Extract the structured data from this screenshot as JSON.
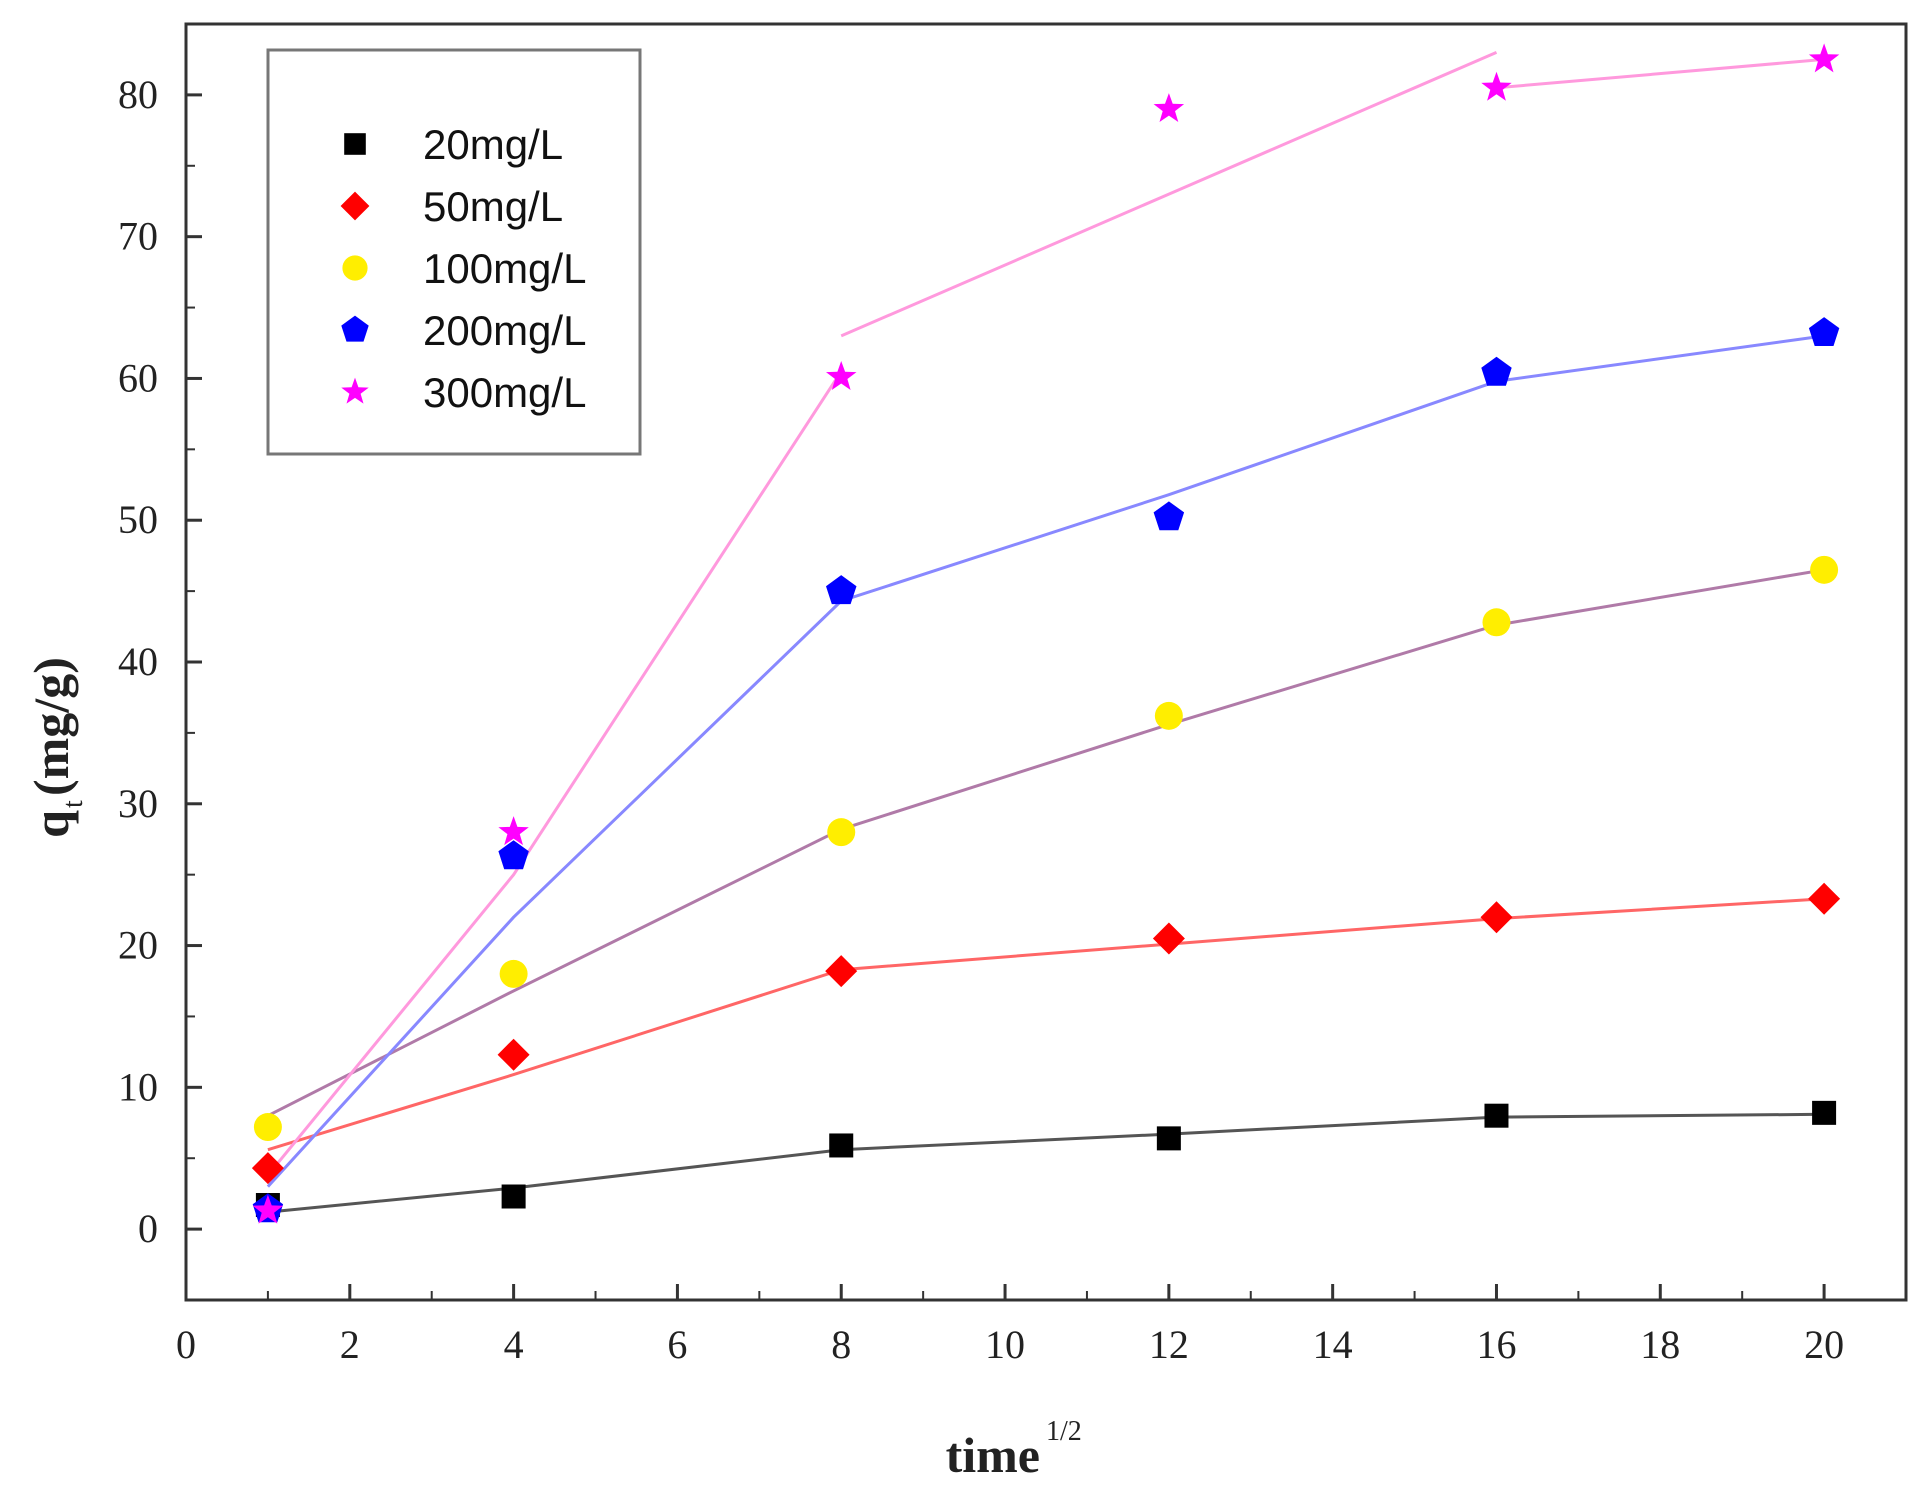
{
  "chart_data": {
    "type": "scatter",
    "title": "",
    "xlabel": "time",
    "xlabel_superscript": "1/2",
    "ylabel": "q",
    "ylabel_subscript": "t",
    "ylabel_unit": "(mg/g)",
    "xlim": [
      0,
      21
    ],
    "ylim": [
      -5,
      85
    ],
    "xticks": [
      0,
      2,
      4,
      6,
      8,
      10,
      12,
      14,
      16,
      18,
      20
    ],
    "yticks": [
      0,
      10,
      20,
      30,
      40,
      50,
      60,
      70,
      80
    ],
    "grid": false,
    "legend_position": "top-left",
    "x": [
      1,
      4,
      8,
      12,
      16,
      20
    ],
    "series": [
      {
        "name": "20mg/L",
        "color": "#000000",
        "marker": "square",
        "points": [
          [
            1,
            1.7
          ],
          [
            4,
            2.3
          ],
          [
            8,
            5.9
          ],
          [
            12,
            6.4
          ],
          [
            16,
            8.0
          ],
          [
            20,
            8.2
          ]
        ],
        "fit_line_color": "#555555",
        "fit_line": [
          [
            [
              1,
              1.2
            ],
            [
              4,
              2.9
            ],
            [
              8,
              5.6
            ],
            [
              12,
              6.7
            ],
            [
              16,
              7.9
            ],
            [
              20,
              8.1
            ]
          ]
        ]
      },
      {
        "name": "50mg/L",
        "color": "#ff0000",
        "marker": "diamond",
        "points": [
          [
            1,
            4.3
          ],
          [
            4,
            12.3
          ],
          [
            8,
            18.2
          ],
          [
            12,
            20.5
          ],
          [
            16,
            22.0
          ],
          [
            20,
            23.3
          ]
        ],
        "fit_line_color": "#ff6666",
        "fit_line": [
          [
            [
              1,
              5.6
            ],
            [
              4,
              10.9
            ],
            [
              8,
              18.3
            ],
            [
              12,
              20.1
            ],
            [
              16,
              21.9
            ],
            [
              20,
              23.3
            ]
          ]
        ]
      },
      {
        "name": "100mg/L",
        "color": "#ffee00",
        "marker": "circle",
        "points": [
          [
            1,
            7.2
          ],
          [
            4,
            18.0
          ],
          [
            8,
            28.0
          ],
          [
            12,
            36.2
          ],
          [
            16,
            42.8
          ],
          [
            20,
            46.5
          ]
        ],
        "fit_line_color": "#b07aa8",
        "fit_line": [
          [
            [
              1,
              8.0
            ],
            [
              4,
              16.8
            ],
            [
              8,
              28.2
            ],
            [
              12,
              35.6
            ],
            [
              16,
              42.6
            ],
            [
              20,
              46.5
            ]
          ]
        ]
      },
      {
        "name": "200mg/L",
        "color": "#0000ff",
        "marker": "pentagon",
        "points": [
          [
            1,
            1.4
          ],
          [
            4,
            26.3
          ],
          [
            8,
            45.0
          ],
          [
            12,
            50.2
          ],
          [
            16,
            60.4
          ],
          [
            20,
            63.2
          ]
        ],
        "fit_line_color": "#8888ff",
        "fit_line": [
          [
            [
              1,
              3.0
            ],
            [
              4,
              22.0
            ],
            [
              8,
              44.3
            ],
            [
              12,
              51.8
            ],
            [
              16,
              59.8
            ],
            [
              20,
              63.0
            ]
          ]
        ]
      },
      {
        "name": "300mg/L",
        "color": "#ff00ff",
        "marker": "star",
        "points": [
          [
            1,
            1.3
          ],
          [
            4,
            28.0
          ],
          [
            8,
            60.1
          ],
          [
            12,
            79.0
          ],
          [
            16,
            80.5
          ],
          [
            20,
            82.5
          ]
        ],
        "fit_line_color": "#ff99dd",
        "fit_line": [
          [
            [
              1,
              3.8
            ],
            [
              4,
              25.0
            ],
            [
              8,
              60.5
            ]
          ],
          [
            [
              8,
              63.0
            ],
            [
              12,
              73.0
            ],
            [
              16,
              83.0
            ]
          ],
          [
            [
              16,
              80.5
            ],
            [
              20,
              82.5
            ]
          ]
        ]
      }
    ]
  }
}
